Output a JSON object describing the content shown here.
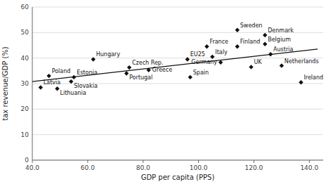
{
  "chart_data": {
    "type": "scatter",
    "xlabel": "GDP per capita (PPS)",
    "ylabel": "tax revenue/GDP (%)",
    "xlim": [
      40,
      145
    ],
    "ylim": [
      0,
      60
    ],
    "xticks": [
      {
        "value": 40,
        "label": "40.0"
      },
      {
        "value": 60,
        "label": "60.0"
      },
      {
        "value": 80,
        "label": "80.0"
      },
      {
        "value": 100,
        "label": "100.0"
      },
      {
        "value": 120,
        "label": "120.0"
      },
      {
        "value": 140,
        "label": "140.0"
      }
    ],
    "yticks": [
      0,
      10,
      20,
      30,
      40,
      50,
      60
    ],
    "grid": true,
    "series": [
      {
        "type": "scatter",
        "marker": "diamond",
        "color": "#111111",
        "labels": [
          "Latvia",
          "Lithuania",
          "Poland",
          "Estonia",
          "Slovakia",
          "Hungary",
          "Czech Rep.",
          "Portugal",
          "Greece",
          "Spain",
          "EU25",
          "France",
          "Italy",
          "Germany",
          "Finland",
          "Sweden",
          "UK",
          "Denmark",
          "Belgium",
          "Austria",
          "Netherlands",
          "Ireland"
        ],
        "x": [
          43,
          49,
          46,
          55,
          54,
          62,
          75,
          74,
          82,
          97,
          96,
          103,
          105,
          108,
          114,
          114,
          119,
          124,
          124,
          126,
          130,
          137
        ],
        "values": [
          28.5,
          28.0,
          33.0,
          32.5,
          30.8,
          39.5,
          36.3,
          34.0,
          35.3,
          32.5,
          39.5,
          44.5,
          40.5,
          38.3,
          44.5,
          51.0,
          36.5,
          49.0,
          45.5,
          41.5,
          37.0,
          30.5
        ]
      },
      {
        "type": "line",
        "color": "#111111",
        "x": [
          40,
          143
        ],
        "values": [
          30.8,
          43.5
        ]
      }
    ]
  }
}
